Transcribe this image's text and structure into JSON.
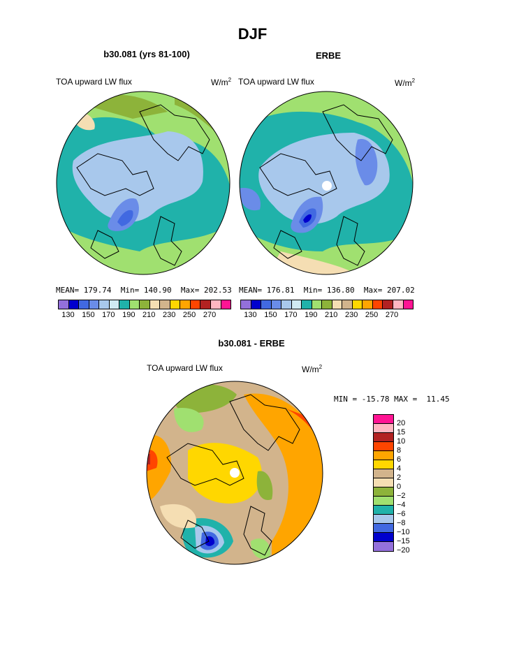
{
  "page_title": "DJF",
  "panels": [
    {
      "title": "b30.081 (yrs 81-100)",
      "field_label": "TOA upward LW flux",
      "units_base": "W/m",
      "units_exp": "2",
      "mean": "MEAN= 179.74",
      "min": "Min= 140.90",
      "max": "Max= 202.53"
    },
    {
      "title": "ERBE",
      "field_label": "TOA upward LW flux",
      "units_base": "W/m",
      "units_exp": "2",
      "mean": "MEAN= 176.81",
      "min": "Min= 136.80",
      "max": "Max= 207.02"
    }
  ],
  "abs_colorbar": {
    "colors": [
      "#9370db",
      "#0000cd",
      "#4169e1",
      "#6a8ce8",
      "#a8c8ec",
      "#d0eaf2",
      "#20b2aa",
      "#a0e070",
      "#8db33a",
      "#f5deb3",
      "#d2b48c",
      "#ffd700",
      "#ffa500",
      "#ff4500",
      "#b22222",
      "#ffb6c1",
      "#ff1493"
    ],
    "tick_labels": [
      "130",
      "150",
      "170",
      "190",
      "210",
      "230",
      "250",
      "270"
    ]
  },
  "diff_panel": {
    "title": "b30.081 - ERBE",
    "field_label": "TOA upward LW flux",
    "units_base": "W/m",
    "units_exp": "2",
    "minmax": "MIN = -15.78 MAX =  11.45",
    "colors": [
      "#ff1493",
      "#ffb6c1",
      "#b22222",
      "#ff4500",
      "#ffa500",
      "#ffd700",
      "#d2b48c",
      "#f5deb3",
      "#8db33a",
      "#a0e070",
      "#20b2aa",
      "#a8c8ec",
      "#4169e1",
      "#0000cd",
      "#9370db"
    ],
    "tick_labels": [
      "20",
      "15",
      "10",
      "8",
      "6",
      "4",
      "2",
      "0",
      "−2",
      "−4",
      "−6",
      "−8",
      "−10",
      "−15",
      "−20"
    ]
  }
}
